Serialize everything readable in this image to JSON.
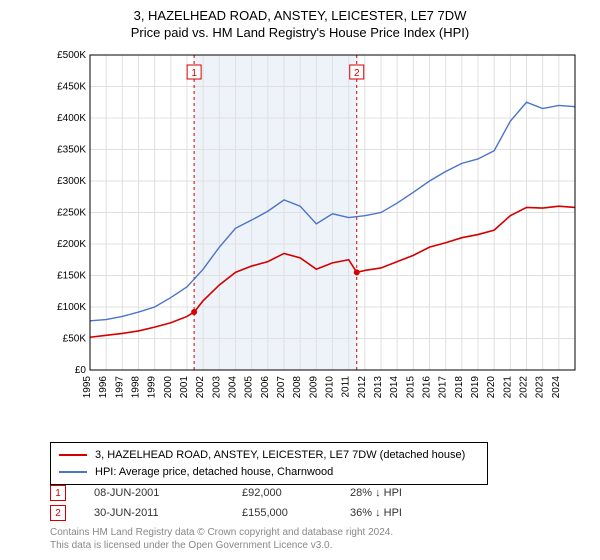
{
  "title": {
    "line1": "3, HAZELHEAD ROAD, ANSTEY, LEICESTER, LE7 7DW",
    "line2": "Price paid vs. HM Land Registry's House Price Index (HPI)",
    "fontsize": 13,
    "color": "#000000"
  },
  "chart": {
    "type": "line",
    "background_color": "#ffffff",
    "plot_border_color": "#000000",
    "grid_color": "#e0e0e0",
    "shaded_band": {
      "x_start": 2001.44,
      "x_end": 2011.5,
      "fill": "#eef2f9"
    },
    "xlim": [
      1995,
      2025
    ],
    "ylim": [
      0,
      500000
    ],
    "ytick_step": 50000,
    "ytick_labels": [
      "£0",
      "£50K",
      "£100K",
      "£150K",
      "£200K",
      "£250K",
      "£300K",
      "£350K",
      "£400K",
      "£450K",
      "£500K"
    ],
    "xtick_step": 1,
    "xtick_labels": [
      "1995",
      "1996",
      "1997",
      "1998",
      "1999",
      "2000",
      "2001",
      "2002",
      "2003",
      "2004",
      "2005",
      "2006",
      "2007",
      "2008",
      "2009",
      "2010",
      "2011",
      "2012",
      "2013",
      "2014",
      "2015",
      "2016",
      "2017",
      "2018",
      "2019",
      "2020",
      "2021",
      "2022",
      "2023",
      "2024"
    ],
    "axis_label_fontsize": 10,
    "axis_label_color": "#000000",
    "series": [
      {
        "name": "price_paid",
        "label": "3, HAZELHEAD ROAD, ANSTEY, LEICESTER, LE7 7DW (detached house)",
        "color": "#d40000",
        "line_width": 1.6,
        "x": [
          1995,
          1996,
          1997,
          1998,
          1999,
          2000,
          2001,
          2001.44,
          2002,
          2003,
          2004,
          2005,
          2006,
          2007,
          2008,
          2009,
          2010,
          2011,
          2011.5,
          2012,
          2013,
          2014,
          2015,
          2016,
          2017,
          2018,
          2019,
          2020,
          2021,
          2022,
          2023,
          2024,
          2025
        ],
        "y": [
          52000,
          55000,
          58000,
          62000,
          68000,
          75000,
          85000,
          92000,
          110000,
          135000,
          155000,
          165000,
          172000,
          185000,
          178000,
          160000,
          170000,
          175000,
          155000,
          158000,
          162000,
          172000,
          182000,
          195000,
          202000,
          210000,
          215000,
          222000,
          245000,
          258000,
          257000,
          260000,
          258000
        ]
      },
      {
        "name": "hpi",
        "label": "HPI: Average price, detached house, Charnwood",
        "color": "#4a74c9",
        "line_width": 1.4,
        "x": [
          1995,
          1996,
          1997,
          1998,
          1999,
          2000,
          2001,
          2002,
          2003,
          2004,
          2005,
          2006,
          2007,
          2008,
          2009,
          2010,
          2011,
          2012,
          2013,
          2014,
          2015,
          2016,
          2017,
          2018,
          2019,
          2020,
          2021,
          2022,
          2023,
          2024,
          2025
        ],
        "y": [
          78000,
          80000,
          85000,
          92000,
          100000,
          115000,
          132000,
          160000,
          195000,
          225000,
          238000,
          252000,
          270000,
          260000,
          232000,
          248000,
          242000,
          245000,
          250000,
          265000,
          282000,
          300000,
          315000,
          328000,
          335000,
          348000,
          395000,
          425000,
          415000,
          420000,
          418000
        ]
      }
    ],
    "markers": [
      {
        "id": "1",
        "x": 2001.44,
        "y": 92000,
        "box_border": "#d40000",
        "box_fill": "#ffffff",
        "text_color": "#d40000",
        "dash_color": "#d40000"
      },
      {
        "id": "2",
        "x": 2011.5,
        "y": 155000,
        "box_border": "#d40000",
        "box_fill": "#ffffff",
        "text_color": "#d40000",
        "dash_color": "#d40000"
      }
    ]
  },
  "legend": {
    "border_color": "#000000",
    "fontsize": 11,
    "rows": [
      {
        "color": "#d40000",
        "text": "3, HAZELHEAD ROAD, ANSTEY, LEICESTER, LE7 7DW (detached house)"
      },
      {
        "color": "#4a74c9",
        "text": "HPI: Average price, detached house, Charnwood"
      }
    ]
  },
  "marker_table": {
    "fontsize": 11,
    "rows": [
      {
        "id": "1",
        "date": "08-JUN-2001",
        "price": "£92,000",
        "delta": "28% ↓ HPI"
      },
      {
        "id": "2",
        "date": "30-JUN-2011",
        "price": "£155,000",
        "delta": "36% ↓ HPI"
      }
    ]
  },
  "footer": {
    "line1": "Contains HM Land Registry data © Crown copyright and database right 2024.",
    "line2": "This data is licensed under the Open Government Licence v3.0.",
    "color": "#888888",
    "fontsize": 10
  }
}
